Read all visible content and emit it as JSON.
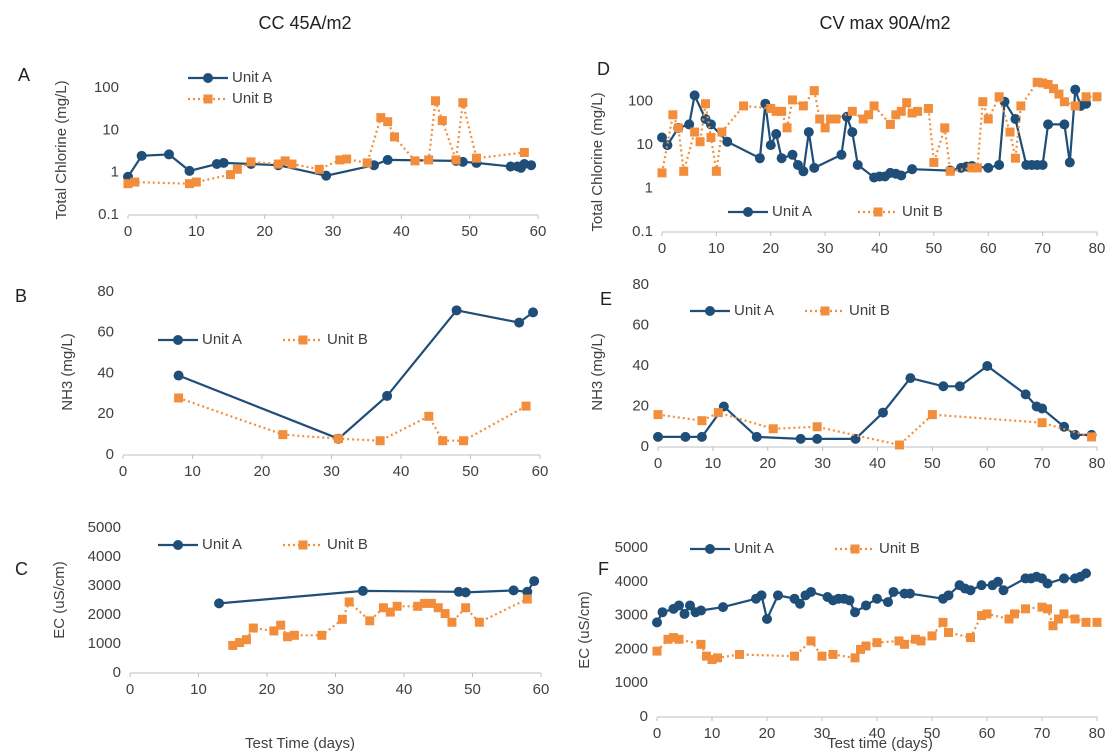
{
  "column_titles": [
    "CC 45A/m2",
    "CV max 90A/m2"
  ],
  "chart_data": [
    {
      "type": "line",
      "panel": "A",
      "ylabel": "Total Chlorine (mg/L)",
      "yscale": "log",
      "xlim": [
        0,
        60
      ],
      "xticks": [
        0,
        10,
        20,
        30,
        40,
        50,
        60
      ],
      "ylim": [
        0.1,
        100
      ],
      "yticks": [
        0.1,
        1,
        10,
        100
      ],
      "legend": "vertical",
      "series": [
        {
          "name": "Unit A",
          "color": "#1f4e79",
          "linestyle": "solid",
          "marker": "circle",
          "x": [
            0,
            2,
            6,
            9,
            13,
            14,
            18,
            22,
            29,
            36,
            38,
            48,
            49,
            51,
            56,
            57,
            57.5,
            58,
            59
          ],
          "values": [
            0.8,
            2.5,
            2.7,
            1.1,
            1.6,
            1.7,
            1.6,
            1.5,
            0.85,
            1.5,
            2.0,
            1.9,
            1.8,
            1.7,
            1.4,
            1.4,
            1.3,
            1.6,
            1.5
          ]
        },
        {
          "name": "Unit B",
          "color": "#f28e3b",
          "linestyle": "dotted",
          "marker": "square",
          "x": [
            0,
            1,
            9,
            10,
            15,
            16,
            18,
            22,
            23,
            24,
            28,
            31,
            32,
            35,
            37,
            38,
            39,
            42,
            44,
            45,
            46,
            48,
            49,
            51,
            58
          ],
          "values": [
            0.55,
            0.6,
            0.55,
            0.6,
            0.9,
            1.2,
            1.8,
            1.6,
            1.9,
            1.6,
            1.2,
            2.0,
            2.1,
            1.7,
            20,
            16,
            7,
            1.9,
            2.0,
            50,
            17,
            2.0,
            45,
            2.2,
            3.0
          ]
        }
      ]
    },
    {
      "type": "line",
      "panel": "B",
      "ylabel": "NH3 (mg/L)",
      "xlim": [
        0,
        60
      ],
      "xticks": [
        0,
        10,
        20,
        30,
        40,
        50,
        60
      ],
      "ylim": [
        0,
        80
      ],
      "yticks": [
        0,
        20,
        40,
        60,
        80
      ],
      "legend": "horizontal",
      "series": [
        {
          "name": "Unit A",
          "color": "#1f4e79",
          "linestyle": "solid",
          "marker": "circle",
          "x": [
            8,
            31,
            38,
            48,
            57,
            59
          ],
          "values": [
            39,
            8,
            29,
            71,
            65,
            70
          ]
        },
        {
          "name": "Unit B",
          "color": "#f28e3b",
          "linestyle": "dotted",
          "marker": "square",
          "x": [
            8,
            23,
            31,
            37,
            44,
            46,
            49,
            58
          ],
          "values": [
            28,
            10,
            8,
            7,
            19,
            7,
            7,
            24
          ]
        }
      ]
    },
    {
      "type": "line",
      "panel": "C",
      "ylabel": "EC (uS/cm)",
      "xlabel": "Test Time (days)",
      "xlim": [
        0,
        60
      ],
      "xticks": [
        0,
        10,
        20,
        30,
        40,
        50,
        60
      ],
      "ylim": [
        0,
        5000
      ],
      "yticks": [
        0,
        1000,
        2000,
        3000,
        4000,
        5000
      ],
      "legend": "horizontal",
      "series": [
        {
          "name": "Unit A",
          "color": "#1f4e79",
          "linestyle": "solid",
          "marker": "circle",
          "x": [
            13,
            34,
            48,
            49,
            56,
            58,
            59
          ],
          "values": [
            2400,
            2830,
            2800,
            2780,
            2850,
            2800,
            3170
          ]
        },
        {
          "name": "Unit B",
          "color": "#f28e3b",
          "linestyle": "dotted",
          "marker": "square",
          "x": [
            15,
            16,
            17,
            18,
            21,
            22,
            23,
            24,
            28,
            31,
            32,
            35,
            37,
            38,
            39,
            42,
            43,
            44,
            45,
            46,
            47,
            49,
            51,
            58
          ],
          "values": [
            950,
            1050,
            1150,
            1550,
            1450,
            1650,
            1250,
            1300,
            1300,
            1850,
            2450,
            1800,
            2250,
            2100,
            2300,
            2300,
            2400,
            2400,
            2250,
            2050,
            1750,
            2250,
            1750,
            2550
          ]
        }
      ]
    },
    {
      "type": "line",
      "panel": "D",
      "ylabel": "Total Chlorine (mg/L)",
      "yscale": "log",
      "xlim": [
        0,
        80
      ],
      "xticks": [
        0,
        10,
        20,
        30,
        40,
        50,
        60,
        70,
        80
      ],
      "ylim": [
        0.1,
        300
      ],
      "yticks": [
        0.1,
        1,
        10,
        100
      ],
      "legend": "horizontal",
      "series": [
        {
          "name": "Unit A",
          "color": "#1f4e79",
          "linestyle": "solid",
          "marker": "circle",
          "x": [
            0,
            1,
            3,
            5,
            6,
            8,
            9,
            12,
            18,
            19,
            20,
            21,
            22,
            24,
            25,
            26,
            27,
            28,
            33,
            34,
            35,
            36,
            39,
            40,
            41,
            42,
            43,
            44,
            46,
            53,
            55,
            56,
            57,
            60,
            62,
            63,
            65,
            67,
            68,
            69,
            70,
            71,
            74,
            75,
            76,
            77,
            78
          ],
          "values": [
            15,
            10,
            25,
            30,
            140,
            40,
            30,
            12,
            5,
            90,
            10,
            18,
            5,
            6,
            3.5,
            2.5,
            20,
            3,
            6,
            45,
            20,
            3.5,
            1.8,
            1.9,
            1.9,
            2.3,
            2.2,
            2,
            2.8,
            2.6,
            3,
            3.2,
            3.3,
            3,
            3.5,
            100,
            40,
            3.5,
            3.5,
            3.5,
            3.5,
            30,
            30,
            4,
            190,
            80,
            90
          ]
        },
        {
          "name": "Unit B",
          "color": "#f28e3b",
          "linestyle": "dotted",
          "marker": "square",
          "x": [
            0,
            2,
            3,
            4,
            6,
            7,
            8,
            9,
            10,
            11,
            15,
            20,
            21,
            22,
            23,
            24,
            26,
            28,
            29,
            30,
            31,
            32,
            35,
            37,
            38,
            39,
            42,
            43,
            44,
            45,
            46,
            47,
            49,
            50,
            52,
            53,
            57,
            58,
            59,
            60,
            62,
            64,
            65,
            66,
            69,
            70,
            71,
            72,
            73,
            74,
            76,
            78,
            80
          ],
          "values": [
            2.3,
            50,
            25,
            2.5,
            20,
            12,
            90,
            15,
            2.5,
            20,
            80,
            70,
            60,
            60,
            25,
            110,
            80,
            180,
            40,
            25,
            40,
            40,
            60,
            40,
            50,
            80,
            30,
            50,
            60,
            95,
            55,
            60,
            70,
            4,
            25,
            2.5,
            3,
            3,
            100,
            40,
            130,
            20,
            5,
            80,
            280,
            270,
            250,
            200,
            150,
            100,
            80,
            130,
            130
          ]
        }
      ]
    },
    {
      "type": "line",
      "panel": "E",
      "ylabel": "NH3 (mg/L)",
      "xlim": [
        0,
        80
      ],
      "xticks": [
        0,
        10,
        20,
        30,
        40,
        50,
        60,
        70,
        80
      ],
      "ylim": [
        0,
        80
      ],
      "yticks": [
        0,
        20,
        40,
        60,
        80
      ],
      "legend": "horizontal",
      "series": [
        {
          "name": "Unit A",
          "color": "#1f4e79",
          "linestyle": "solid",
          "marker": "circle",
          "x": [
            0,
            5,
            8,
            12,
            18,
            26,
            29,
            36,
            41,
            46,
            52,
            55,
            60,
            67,
            69,
            70,
            74,
            76,
            79
          ],
          "values": [
            5,
            5,
            5,
            20,
            5,
            4,
            4,
            4,
            17,
            34,
            30,
            30,
            40,
            26,
            20,
            19,
            10,
            6,
            6
          ]
        },
        {
          "name": "Unit B",
          "color": "#f28e3b",
          "linestyle": "dotted",
          "marker": "square",
          "x": [
            0,
            8,
            11,
            21,
            29,
            44,
            50,
            70,
            79
          ],
          "values": [
            16,
            13,
            17,
            9,
            10,
            1,
            16,
            12,
            5
          ]
        }
      ]
    },
    {
      "type": "line",
      "panel": "F",
      "ylabel": "EC (uS/cm)",
      "xlabel": "Test time (days)",
      "xlim": [
        0,
        80
      ],
      "xticks": [
        0,
        10,
        20,
        30,
        40,
        50,
        60,
        70,
        80
      ],
      "ylim": [
        0,
        5000
      ],
      "yticks": [
        0,
        1000,
        2000,
        3000,
        4000,
        5000
      ],
      "legend": "horizontal",
      "series": [
        {
          "name": "Unit A",
          "color": "#1f4e79",
          "linestyle": "solid",
          "marker": "circle",
          "x": [
            0,
            1,
            3,
            4,
            5,
            6,
            7,
            8,
            12,
            18,
            19,
            20,
            22,
            25,
            26,
            27,
            28,
            31,
            32,
            33,
            34,
            35,
            36,
            38,
            40,
            42,
            43,
            45,
            46,
            52,
            53,
            55,
            56,
            57,
            59,
            61,
            62,
            63,
            67,
            68,
            69,
            70,
            71,
            74,
            76,
            77,
            78
          ],
          "values": [
            2800,
            3100,
            3200,
            3300,
            3050,
            3300,
            3100,
            3150,
            3250,
            3500,
            3600,
            2900,
            3600,
            3500,
            3350,
            3600,
            3700,
            3550,
            3450,
            3500,
            3500,
            3450,
            3100,
            3300,
            3500,
            3400,
            3700,
            3650,
            3650,
            3500,
            3600,
            3900,
            3800,
            3750,
            3900,
            3900,
            4000,
            3750,
            4100,
            4100,
            4150,
            4100,
            3950,
            4100,
            4100,
            4150,
            4250
          ]
        },
        {
          "name": "Unit B",
          "color": "#f28e3b",
          "linestyle": "dotted",
          "marker": "square",
          "x": [
            0,
            2,
            3,
            4,
            8,
            9,
            10,
            11,
            15,
            25,
            28,
            30,
            32,
            36,
            37,
            38,
            40,
            44,
            45,
            47,
            48,
            50,
            52,
            53,
            57,
            59,
            60,
            64,
            65,
            67,
            70,
            71,
            72,
            73,
            74,
            76,
            78,
            80
          ],
          "values": [
            1950,
            2300,
            2350,
            2300,
            2150,
            1800,
            1700,
            1750,
            1850,
            1800,
            2250,
            1800,
            1850,
            1750,
            2000,
            2100,
            2200,
            2250,
            2150,
            2300,
            2250,
            2400,
            2800,
            2500,
            2350,
            3000,
            3050,
            2900,
            3050,
            3200,
            3250,
            3200,
            2700,
            2900,
            3050,
            2900,
            2800,
            2800
          ]
        }
      ]
    }
  ]
}
